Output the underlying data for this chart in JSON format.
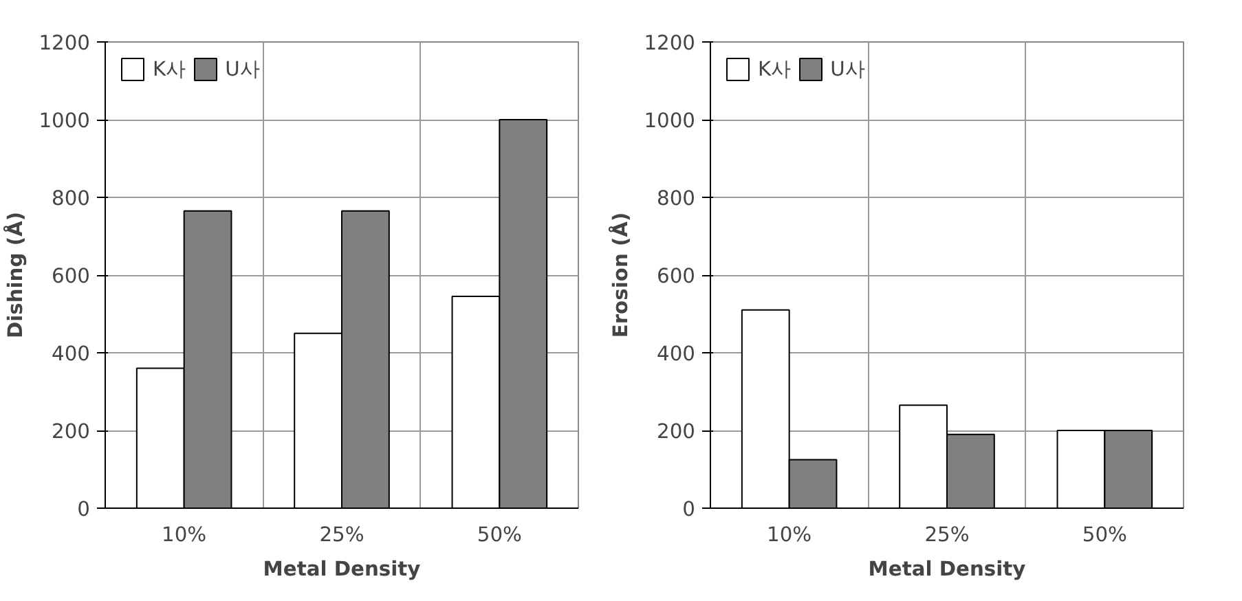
{
  "chart_data": [
    {
      "type": "bar",
      "xlabel": "Metal Density",
      "ylabel": "Dishing (Å)",
      "categories": [
        "10%",
        "25%",
        "50%"
      ],
      "ylim": [
        0,
        1200
      ],
      "yticks": [
        0,
        200,
        400,
        600,
        800,
        1000,
        1200
      ],
      "grid": true,
      "legend": "top left",
      "series": [
        {
          "name": "K사",
          "color": "#ffffff",
          "values": [
            360,
            450,
            545
          ]
        },
        {
          "name": "U사",
          "color": "#808080",
          "values": [
            765,
            765,
            1000
          ]
        }
      ]
    },
    {
      "type": "bar",
      "xlabel": "Metal Density",
      "ylabel": "Erosion (Å)",
      "categories": [
        "10%",
        "25%",
        "50%"
      ],
      "ylim": [
        0,
        1200
      ],
      "yticks": [
        0,
        200,
        400,
        600,
        800,
        1000,
        1200
      ],
      "grid": true,
      "legend": "top left",
      "series": [
        {
          "name": "K사",
          "color": "#ffffff",
          "values": [
            510,
            265,
            200
          ]
        },
        {
          "name": "U사",
          "color": "#808080",
          "values": [
            125,
            190,
            200
          ]
        }
      ]
    }
  ]
}
